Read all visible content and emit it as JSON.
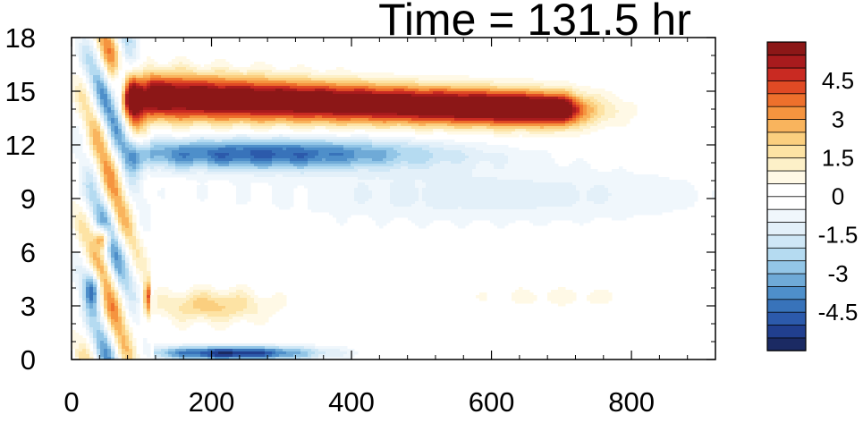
{
  "chart_data": {
    "type": "heatmap",
    "title": "Time = 131.5 hr",
    "xlabel": "",
    "ylabel": "",
    "xlim": [
      0,
      920
    ],
    "ylim": [
      0,
      18
    ],
    "x_ticks": [
      "0",
      "200",
      "400",
      "600",
      "800"
    ],
    "y_ticks": [
      "0",
      "3",
      "6",
      "9",
      "12",
      "15",
      "18"
    ],
    "colorbar": {
      "min": -6,
      "max": 6,
      "step": 0.5,
      "labels": [
        "4.5",
        "3",
        "1.5",
        "0",
        "-1.5",
        "-3",
        "-4.5"
      ],
      "colors": [
        "#1b2a63",
        "#213f8f",
        "#2c5aab",
        "#3873ba",
        "#4e8fca",
        "#6faad7",
        "#93c6e7",
        "#b5dbf1",
        "#cfe7f6",
        "#e3f0f9",
        "#f0f7fc",
        "#ffffff",
        "#ffffff",
        "#fff9e6",
        "#fdf0c8",
        "#fde3a4",
        "#fbcf7f",
        "#f9b45d",
        "#f5943f",
        "#ee702c",
        "#e04a24",
        "#c92a22",
        "#a81b1d",
        "#8c1717"
      ]
    },
    "field_features": [
      {
        "x": [
          80,
          700
        ],
        "y": [
          13,
          16.3
        ],
        "value": 6.0,
        "description": "positive jet"
      },
      {
        "x": [
          90,
          560
        ],
        "y": [
          10.5,
          12.8
        ],
        "value": -3.5,
        "description": "negative band"
      },
      {
        "x": [
          120,
          350
        ],
        "y": [
          0.1,
          0.8
        ],
        "value": -5.0,
        "description": "surface negative band"
      },
      {
        "x": [
          120,
          350
        ],
        "y": [
          1.5,
          4.2
        ],
        "value": 1.8,
        "description": "low-level positive"
      },
      {
        "x": [
          520,
          800
        ],
        "y": [
          12.5,
          15.5
        ],
        "value": 0.9,
        "description": "upper positive patch"
      },
      {
        "x": [
          300,
          900
        ],
        "y": [
          7.0,
          11.0
        ],
        "value": -1.2,
        "description": "mid-level weak negative"
      }
    ]
  }
}
